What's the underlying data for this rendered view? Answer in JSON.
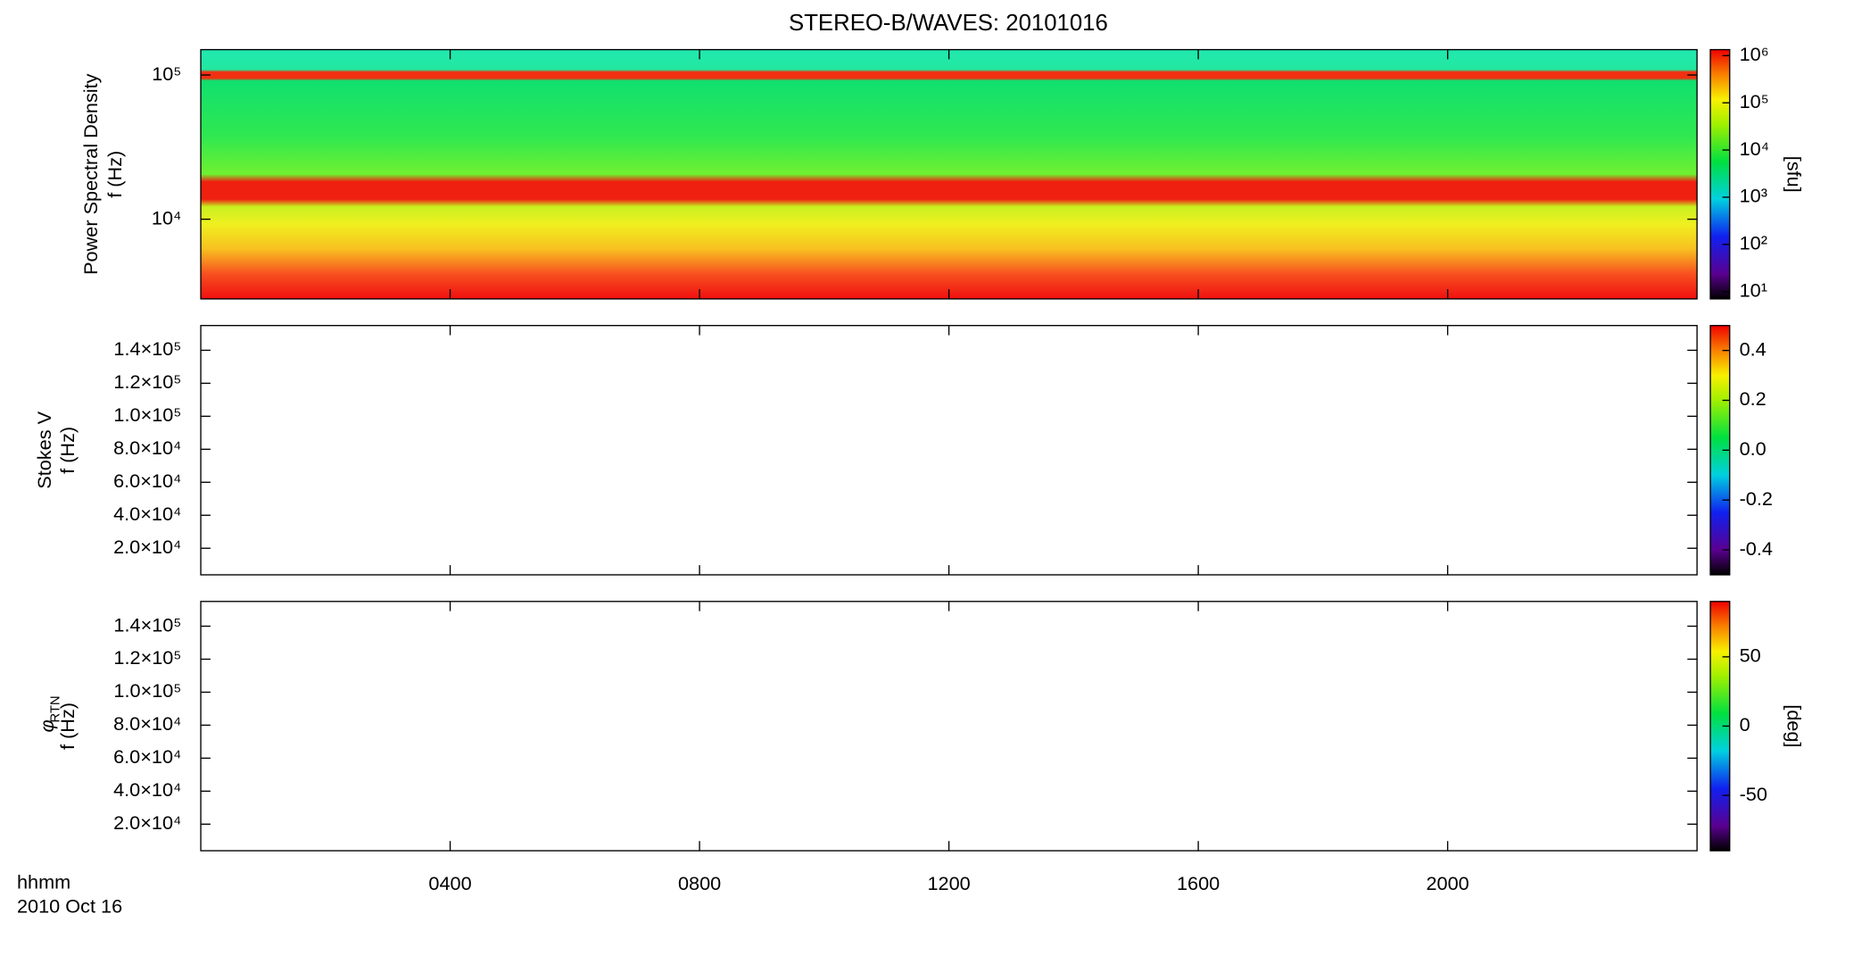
{
  "chart_data": {
    "type": "spectrogram",
    "title": "STEREO-B/WAVES: 20101016",
    "x_label": "hhmm",
    "date": "2010 Oct 16",
    "xlim": [
      0,
      24
    ],
    "xticks": [
      {
        "value": 4,
        "label": "0400"
      },
      {
        "value": 8,
        "label": "0800"
      },
      {
        "value": 12,
        "label": "1200"
      },
      {
        "value": 16,
        "label": "1600"
      },
      {
        "value": 20,
        "label": "2000"
      }
    ],
    "panels": [
      {
        "ylabel": "Power Spectral Density",
        "ylabel2": "f (Hz)",
        "ylog": true,
        "ylim": [
          2800,
          150000
        ],
        "yticks": [
          {
            "value": 10000,
            "label": "10⁴"
          },
          {
            "value": 100000,
            "label": "10⁵"
          }
        ],
        "colorbar_label": "[sfu]",
        "clog": true,
        "clim": [
          7,
          1340000
        ],
        "cticks": [
          {
            "value": 10,
            "label": "10¹"
          },
          {
            "value": 100,
            "label": "10²"
          },
          {
            "value": 1000,
            "label": "10³"
          },
          {
            "value": 10000,
            "label": "10⁴"
          },
          {
            "value": 100000,
            "label": "10⁵"
          },
          {
            "value": 1000000,
            "label": "10⁶"
          }
        ]
      },
      {
        "ylabel": "Stokes V",
        "ylabel2": "f (Hz)",
        "ylog": false,
        "ylim": [
          3900,
          155000
        ],
        "yticks": [
          {
            "value": 20000,
            "label": "2.0×10⁴"
          },
          {
            "value": 40000,
            "label": "4.0×10⁴"
          },
          {
            "value": 60000,
            "label": "6.0×10⁴"
          },
          {
            "value": 80000,
            "label": "8.0×10⁴"
          },
          {
            "value": 100000,
            "label": "1.0×10⁵"
          },
          {
            "value": 120000,
            "label": "1.2×10⁵"
          },
          {
            "value": 140000,
            "label": "1.4×10⁵"
          }
        ],
        "clog": false,
        "clim": [
          -0.5,
          0.5
        ],
        "cticks": [
          {
            "value": -0.4,
            "label": "-0.4"
          },
          {
            "value": -0.2,
            "label": "-0.2"
          },
          {
            "value": 0,
            "label": "0.0"
          },
          {
            "value": 0.2,
            "label": "0.2"
          },
          {
            "value": 0.4,
            "label": "0.4"
          }
        ]
      },
      {
        "ylabel": "φ",
        "ylabel_sub": "RTN",
        "ylabel2": "f (Hz)",
        "ylog": false,
        "ylim": [
          3900,
          155000
        ],
        "yticks": [
          {
            "value": 20000,
            "label": "2.0×10⁴"
          },
          {
            "value": 40000,
            "label": "4.0×10⁴"
          },
          {
            "value": 60000,
            "label": "6.0×10⁴"
          },
          {
            "value": 80000,
            "label": "8.0×10⁴"
          },
          {
            "value": 100000,
            "label": "1.0×10⁵"
          },
          {
            "value": 120000,
            "label": "1.2×10⁵"
          },
          {
            "value": 140000,
            "label": "1.4×10⁵"
          }
        ],
        "colorbar_label": "[deg]",
        "clog": false,
        "clim": [
          -90,
          90
        ],
        "cticks": [
          -50,
          0,
          50
        ]
      }
    ]
  }
}
